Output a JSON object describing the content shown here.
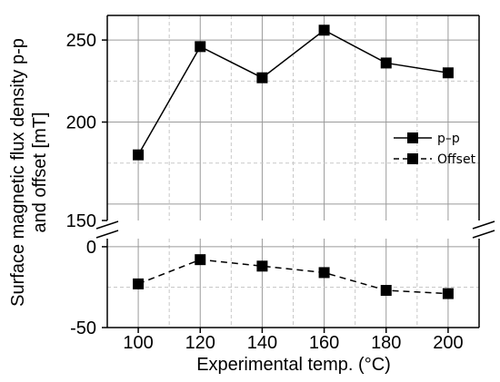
{
  "chart_data": {
    "type": "line",
    "xlabel": "Experimental temp. (°C)",
    "ylabel_line1": "Surface magnetic flux density p-p",
    "ylabel_line2": "and offset [mT]",
    "x": [
      100,
      120,
      140,
      160,
      180,
      200
    ],
    "xlim": [
      90,
      210
    ],
    "x_major_ticks": [
      100,
      120,
      140,
      160,
      180,
      200
    ],
    "upper_panel": {
      "ylim": [
        140,
        265
      ],
      "major_ticks": [
        150,
        200,
        250
      ],
      "minor_gridlines": [
        175,
        225
      ]
    },
    "lower_panel": {
      "ylim": [
        -50,
        5
      ],
      "major_ticks": [
        -50,
        0
      ],
      "minor_gridlines": [
        -25
      ]
    },
    "axis_break": true,
    "grid": true,
    "legend": "right",
    "series": [
      {
        "name": "p–p",
        "values": [
          180,
          246,
          227,
          256,
          236,
          230
        ],
        "style": "solid",
        "marker": "square",
        "panel": "upper"
      },
      {
        "name": "Offset",
        "values": [
          -23,
          -8,
          -12,
          -16,
          -27,
          -29
        ],
        "style": "dashed",
        "marker": "square",
        "panel": "lower"
      }
    ]
  }
}
